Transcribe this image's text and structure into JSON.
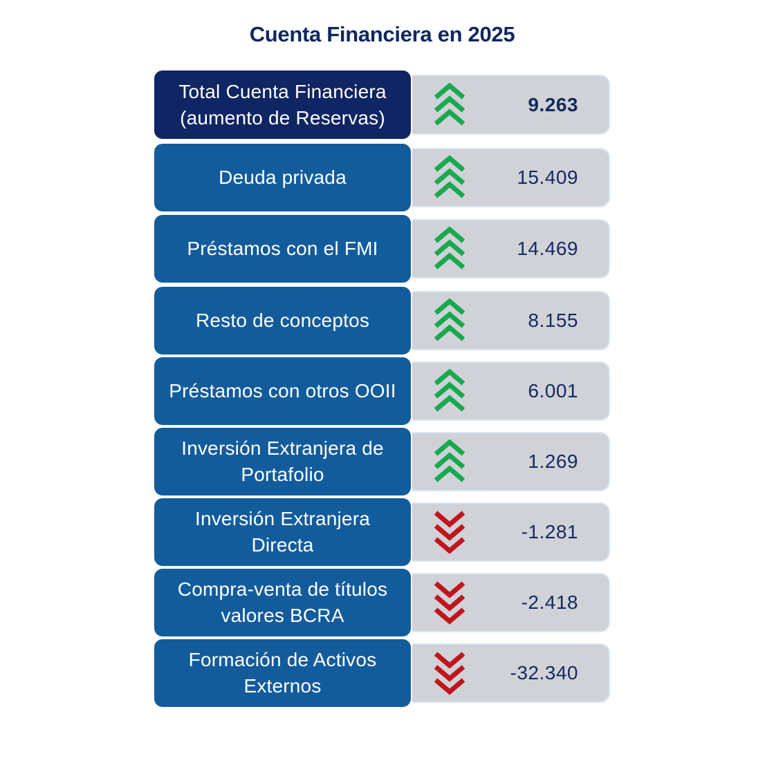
{
  "chart_data": {
    "type": "table",
    "title": "Cuenta Financiera en 2025",
    "colors": {
      "up": "#18a94f",
      "down": "#c0151d",
      "label_bg": "#135c9c",
      "total_bg": "#102563",
      "value_bg": "#d0d2d8"
    },
    "rows": [
      {
        "label": "Total Cuenta Financiera (aumento de Reservas)",
        "value": "9.263",
        "numeric": 9263,
        "direction": "up",
        "total": true
      },
      {
        "label": "Deuda privada",
        "value": "15.409",
        "numeric": 15409,
        "direction": "up"
      },
      {
        "label": "Préstamos con el FMI",
        "value": "14.469",
        "numeric": 14469,
        "direction": "up"
      },
      {
        "label": "Resto de conceptos",
        "value": "8.155",
        "numeric": 8155,
        "direction": "up"
      },
      {
        "label": "Préstamos con otros OOII",
        "value": "6.001",
        "numeric": 6001,
        "direction": "up"
      },
      {
        "label": "Inversión Extranjera de Portafolio",
        "value": "1.269",
        "numeric": 1269,
        "direction": "up"
      },
      {
        "label": "Inversión Extranjera Directa",
        "value": "-1.281",
        "numeric": -1281,
        "direction": "down"
      },
      {
        "label": "Compra-venta de títulos valores BCRA",
        "value": "-2.418",
        "numeric": -2418,
        "direction": "down"
      },
      {
        "label": "Formación de Activos Externos",
        "value": "-32.340",
        "numeric": -32340,
        "direction": "down"
      }
    ]
  }
}
